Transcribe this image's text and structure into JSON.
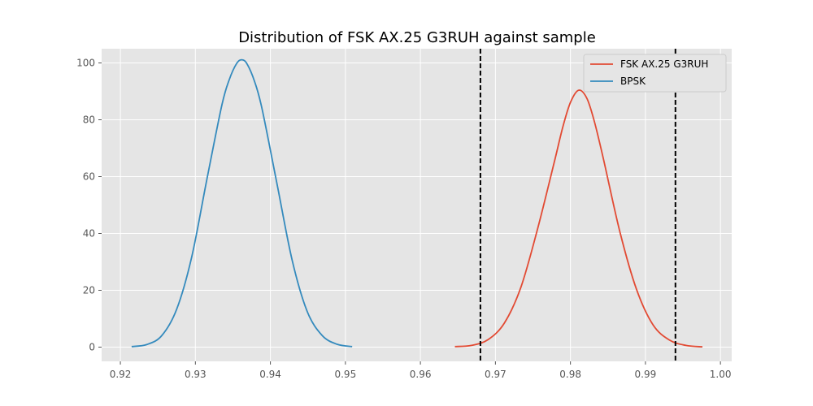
{
  "chart_data": {
    "type": "line",
    "title": "Distribution of FSK AX.25 G3RUH against sample",
    "xlabel": "",
    "ylabel": "",
    "xlim": [
      0.9175,
      1.0015
    ],
    "ylim": [
      -5,
      105
    ],
    "xticks": [
      0.92,
      0.93,
      0.94,
      0.95,
      0.96,
      0.97,
      0.98,
      0.99,
      1.0
    ],
    "xtick_labels": [
      "0.92",
      "0.93",
      "0.94",
      "0.95",
      "0.96",
      "0.97",
      "0.98",
      "0.99",
      "1.00"
    ],
    "yticks": [
      0,
      20,
      40,
      60,
      80,
      100
    ],
    "ytick_labels": [
      "0",
      "20",
      "40",
      "60",
      "80",
      "100"
    ],
    "grid": true,
    "style": "ggplot",
    "legend_position": "top-right",
    "series": [
      {
        "name": "FSK AX.25 G3RUH",
        "color": "#E24A33",
        "x": [
          0.9646,
          0.9668,
          0.969,
          0.9712,
          0.9734,
          0.9756,
          0.9778,
          0.979,
          0.98,
          0.9811,
          0.9822,
          0.9832,
          0.9844,
          0.9866,
          0.9888,
          0.991,
          0.9932,
          0.9954,
          0.9976
        ],
        "values": [
          0.2,
          0.6,
          2.6,
          8.5,
          21.1,
          41.4,
          64.6,
          77.6,
          86.1,
          90.4,
          87.5,
          79.3,
          66.2,
          40.5,
          20.4,
          7.9,
          2.5,
          0.6,
          0.1
        ]
      },
      {
        "name": "BPSK",
        "color": "#348ABD",
        "x": [
          0.9215,
          0.9235,
          0.9255,
          0.9275,
          0.9295,
          0.9315,
          0.9335,
          0.9345,
          0.9355,
          0.9362,
          0.9369,
          0.9379,
          0.9389,
          0.9409,
          0.9429,
          0.9449,
          0.9469,
          0.9489,
          0.9509
        ],
        "values": [
          0.2,
          0.9,
          4.0,
          13.3,
          31.6,
          58.6,
          84.8,
          94.0,
          99.8,
          101.1,
          99.6,
          93.4,
          83.7,
          57.2,
          30.6,
          12.6,
          4.1,
          1.0,
          0.2
        ]
      }
    ],
    "reference_lines": [
      {
        "x": 0.968,
        "style": "dashed",
        "color": "#000000"
      },
      {
        "x": 0.994,
        "style": "dashed",
        "color": "#000000"
      }
    ]
  }
}
